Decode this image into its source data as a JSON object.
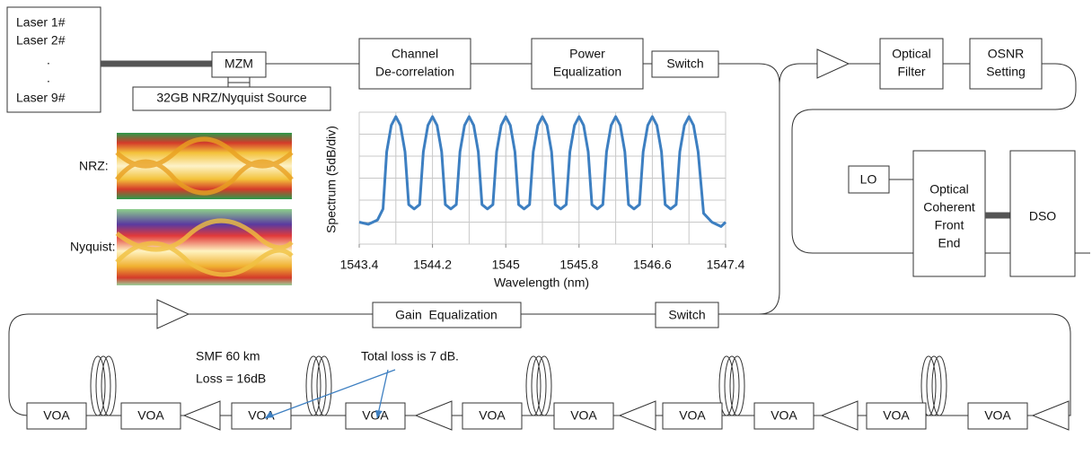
{
  "lasers": [
    "Laser 1#",
    "Laser 2#",
    ".",
    ".",
    "Laser 9#"
  ],
  "blocks": {
    "mzm": "MZM",
    "source": "32GB NRZ/Nyquist Source",
    "decorrelation": [
      "Channel",
      "De-correlation"
    ],
    "power_eq": [
      "Power",
      "Equalization"
    ],
    "switch_top": "Switch",
    "optical_filter": [
      "Optical",
      "Filter"
    ],
    "osnr": [
      "OSNR",
      "Setting"
    ],
    "lo": "LO",
    "front_end": [
      "Optical",
      "Coherent",
      "Front",
      "End"
    ],
    "dso": "DSO",
    "gain_eq": "Gain  Equalization",
    "switch_bottom": "Switch"
  },
  "voa": [
    "VOA",
    "VOA",
    "VOA",
    "VOA",
    "VOA",
    "VOA",
    "VOA",
    "VOA",
    "VOA",
    "VOA"
  ],
  "eye_labels": [
    "NRZ:",
    "Nyquist:"
  ],
  "annotations": {
    "fiber": [
      "SMF 60 km",
      "Loss = 16dB"
    ],
    "loss": "Total loss is 7 dB."
  },
  "chart_data": {
    "type": "line",
    "x_label": "Wavelength (nm)",
    "y_label": "Spectrum (5dB/div)",
    "xlim": [
      1543.4,
      1547.4
    ],
    "ylim": [
      -30,
      0
    ],
    "xticks": [
      1543.4,
      1544.2,
      1545,
      1545.8,
      1546.6,
      1547.4
    ],
    "xgrid": [
      1543.4,
      1543.8,
      1544.2,
      1544.6,
      1545,
      1545.4,
      1545.8,
      1546.2,
      1546.6,
      1547,
      1547.4
    ],
    "ygrid": [
      -30,
      -25,
      -20,
      -15,
      -10,
      -5,
      0
    ],
    "grid": true,
    "x": [
      1543.4,
      1543.5,
      1543.6,
      1543.66,
      1543.7,
      1543.75,
      1543.8,
      1543.85,
      1543.9,
      1543.94,
      1544.0,
      1544.06,
      1544.1,
      1544.15,
      1544.2,
      1544.25,
      1544.3,
      1544.34,
      1544.4,
      1544.46,
      1544.5,
      1544.55,
      1544.6,
      1544.65,
      1544.7,
      1544.74,
      1544.8,
      1544.86,
      1544.9,
      1544.95,
      1545.0,
      1545.05,
      1545.1,
      1545.14,
      1545.2,
      1545.26,
      1545.3,
      1545.35,
      1545.4,
      1545.45,
      1545.5,
      1545.54,
      1545.6,
      1545.66,
      1545.7,
      1545.75,
      1545.8,
      1545.85,
      1545.9,
      1545.94,
      1546.0,
      1546.06,
      1546.1,
      1546.15,
      1546.2,
      1546.25,
      1546.3,
      1546.34,
      1546.4,
      1546.46,
      1546.5,
      1546.55,
      1546.6,
      1546.65,
      1546.7,
      1546.74,
      1546.8,
      1546.86,
      1546.9,
      1546.95,
      1547.0,
      1547.05,
      1547.1,
      1547.16,
      1547.25,
      1547.35,
      1547.4
    ],
    "series": [
      {
        "color": "#3d7fc1",
        "values": [
          -25,
          -25.5,
          -24.5,
          -22,
          -9,
          -3,
          -1,
          -3,
          -9,
          -21,
          -22,
          -21,
          -9,
          -3,
          -1,
          -3,
          -9,
          -21,
          -22,
          -21,
          -9,
          -3,
          -1,
          -3,
          -9,
          -21,
          -22,
          -21,
          -9,
          -3,
          -1,
          -3,
          -9,
          -21,
          -22,
          -21,
          -9,
          -3,
          -1,
          -3,
          -9,
          -21,
          -22,
          -21,
          -9,
          -3,
          -1,
          -3,
          -9,
          -21,
          -22,
          -21,
          -9,
          -3,
          -1,
          -3,
          -9,
          -21,
          -22,
          -21,
          -9,
          -3,
          -1,
          -3,
          -9,
          -21,
          -22,
          -21,
          -9,
          -3,
          -1,
          -3,
          -9,
          -23,
          -25,
          -26,
          -25
        ]
      }
    ]
  }
}
